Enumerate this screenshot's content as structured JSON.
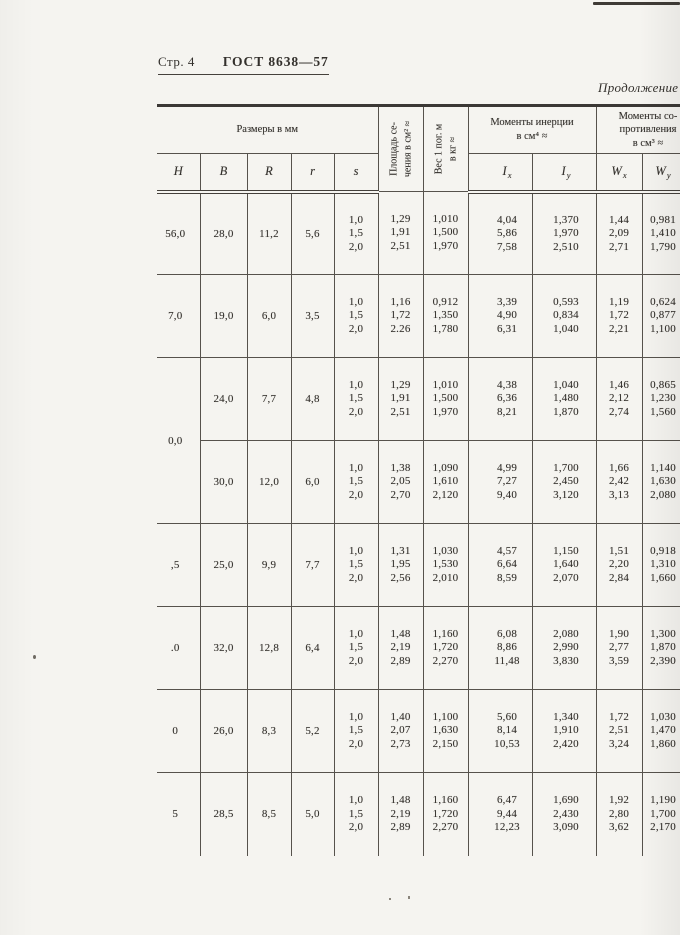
{
  "page": {
    "label": "Стр. 4",
    "standard": "ГОСТ 8638—57",
    "continuation": "Продолжение"
  },
  "table": {
    "group_headers": {
      "dimensions": "Размеры в мм",
      "area": "Площадь се-\nчения в см² ≈",
      "weight": "Вес 1 пог. м\nв кг ≈",
      "inertia": "Моменты инерции\nв см⁴ ≈",
      "resistance": "Моменты со-\nпротивления\nв см³ ≈"
    },
    "columns": [
      {
        "key": "H",
        "letter": "H"
      },
      {
        "key": "B",
        "letter": "B"
      },
      {
        "key": "R",
        "letter": "R"
      },
      {
        "key": "r",
        "letter": "r"
      },
      {
        "key": "s",
        "letter": "s"
      },
      {
        "key": "Ix",
        "letter": "I",
        "sub": "x"
      },
      {
        "key": "Iy",
        "letter": "I",
        "sub": "y"
      },
      {
        "key": "Wx",
        "letter": "W",
        "sub": "x"
      },
      {
        "key": "Wy",
        "letter": "W",
        "sub": "y"
      }
    ],
    "groups": [
      {
        "H": "56,0",
        "B": "28,0",
        "R": "11,2",
        "r": "5,6",
        "s": [
          "1,0",
          "1,5",
          "2,0"
        ],
        "area": [
          "1,29",
          "1,91",
          "2,51"
        ],
        "weight": [
          "1,010",
          "1,500",
          "1,970"
        ],
        "Ix": [
          "4,04",
          "5,86",
          "7,58"
        ],
        "Iy": [
          "1,370",
          "1,970",
          "2,510"
        ],
        "Wx": [
          "1,44",
          "2,09",
          "2,71"
        ],
        "Wy": [
          "0,981",
          "1,410",
          "1,790"
        ]
      },
      {
        "H": "7,0",
        "B": "19,0",
        "R": "6,0",
        "r": "3,5",
        "s": [
          "1,0",
          "1,5",
          "2,0"
        ],
        "area": [
          "1,16",
          "1,72",
          "2.26"
        ],
        "weight": [
          "0,912",
          "1,350",
          "1,780"
        ],
        "Ix": [
          "3,39",
          "4,90",
          "6,31"
        ],
        "Iy": [
          "0,593",
          "0,834",
          "1,040"
        ],
        "Wx": [
          "1,19",
          "1,72",
          "2,21"
        ],
        "Wy": [
          "0,624",
          "0,877",
          "1,100"
        ]
      },
      {
        "H": "0,0",
        "H_span": 2,
        "B": "24,0",
        "R": "7,7",
        "r": "4,8",
        "s": [
          "1,0",
          "1,5",
          "2,0"
        ],
        "area": [
          "1,29",
          "1,91",
          "2,51"
        ],
        "weight": [
          "1,010",
          "1,500",
          "1,970"
        ],
        "Ix": [
          "4,38",
          "6,36",
          "8,21"
        ],
        "Iy": [
          "1,040",
          "1,480",
          "1,870"
        ],
        "Wx": [
          "1,46",
          "2,12",
          "2,74"
        ],
        "Wy": [
          "0,865",
          "1,230",
          "1,560"
        ]
      },
      {
        "H": null,
        "B": "30,0",
        "R": "12,0",
        "r": "6,0",
        "s": [
          "1,0",
          "1,5",
          "2,0"
        ],
        "area": [
          "1,38",
          "2,05",
          "2,70"
        ],
        "weight": [
          "1,090",
          "1,610",
          "2,120"
        ],
        "Ix": [
          "4,99",
          "7,27",
          "9,40"
        ],
        "Iy": [
          "1,700",
          "2,450",
          "3,120"
        ],
        "Wx": [
          "1,66",
          "2,42",
          "3,13"
        ],
        "Wy": [
          "1,140",
          "1,630",
          "2,080"
        ]
      },
      {
        "H": ",5",
        "B": "25,0",
        "R": "9,9",
        "r": "7,7",
        "s": [
          "1,0",
          "1,5",
          "2,0"
        ],
        "area": [
          "1,31",
          "1,95",
          "2,56"
        ],
        "weight": [
          "1,030",
          "1,530",
          "2,010"
        ],
        "Ix": [
          "4,57",
          "6,64",
          "8,59"
        ],
        "Iy": [
          "1,150",
          "1,640",
          "2,070"
        ],
        "Wx": [
          "1,51",
          "2,20",
          "2,84"
        ],
        "Wy": [
          "0,918",
          "1,310",
          "1,660"
        ]
      },
      {
        "H": ".0",
        "B": "32,0",
        "R": "12,8",
        "r": "6,4",
        "s": [
          "1,0",
          "1,5",
          "2,0"
        ],
        "area": [
          "1,48",
          "2,19",
          "2,89"
        ],
        "weight": [
          "1,160",
          "1,720",
          "2,270"
        ],
        "Ix": [
          "6,08",
          "8,86",
          "11,48"
        ],
        "Iy": [
          "2,080",
          "2,990",
          "3,830"
        ],
        "Wx": [
          "1,90",
          "2,77",
          "3,59"
        ],
        "Wy": [
          "1,300",
          "1,870",
          "2,390"
        ]
      },
      {
        "H": "0",
        "B": "26,0",
        "R": "8,3",
        "r": "5,2",
        "s": [
          "1,0",
          "1,5",
          "2,0"
        ],
        "area": [
          "1,40",
          "2,07",
          "2,73"
        ],
        "weight": [
          "1,100",
          "1,630",
          "2,150"
        ],
        "Ix": [
          "5,60",
          "8,14",
          "10,53"
        ],
        "Iy": [
          "1,340",
          "1,910",
          "2,420"
        ],
        "Wx": [
          "1,72",
          "2,51",
          "3,24"
        ],
        "Wy": [
          "1,030",
          "1,470",
          "1,860"
        ]
      },
      {
        "H": "5",
        "B": "28,5",
        "R": "8,5",
        "r": "5,0",
        "s": [
          "1,0",
          "1,5",
          "2,0"
        ],
        "area": [
          "1,48",
          "2,19",
          "2,89"
        ],
        "weight": [
          "1,160",
          "1,720",
          "2,270"
        ],
        "Ix": [
          "6,47",
          "9,44",
          "12,23"
        ],
        "Iy": [
          "1,690",
          "2,430",
          "3,090"
        ],
        "Wx": [
          "1,92",
          "2,80",
          "3,62"
        ],
        "Wy": [
          "1,190",
          "1,700",
          "2,170"
        ]
      }
    ]
  }
}
